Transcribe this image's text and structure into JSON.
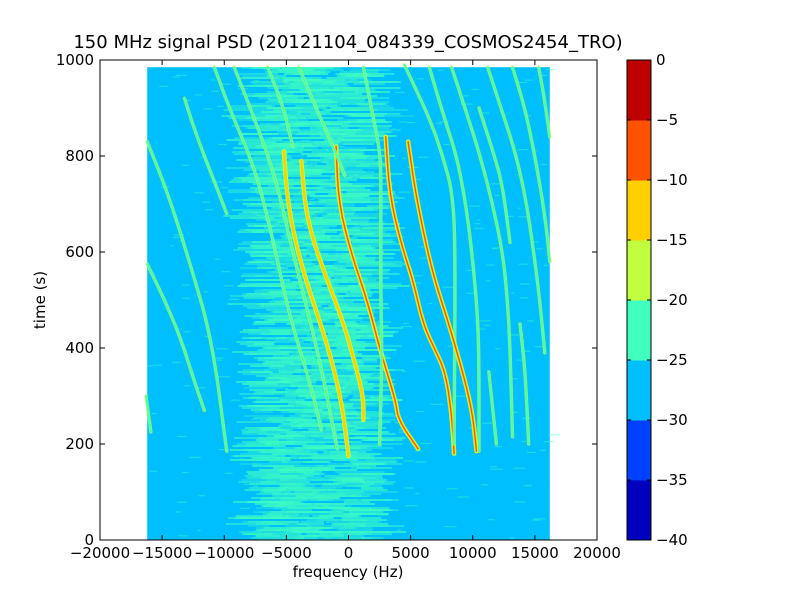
{
  "chart_data": {
    "type": "heatmap",
    "title": "150 MHz signal PSD (20121104_084339_COSMOS2454_TRO)",
    "xlabel": "frequency (Hz)",
    "ylabel": "time (s)",
    "xlim": [
      -20000,
      20000
    ],
    "ylim": [
      0,
      1000
    ],
    "x_ticks": [
      -20000,
      -15000,
      -10000,
      -5000,
      0,
      5000,
      10000,
      15000,
      20000
    ],
    "x_tick_labels": [
      "−20000",
      "−15000",
      "−10000",
      "−5000",
      "0",
      "5000",
      "10000",
      "15000",
      "20000"
    ],
    "y_ticks": [
      0,
      200,
      400,
      600,
      800,
      1000
    ],
    "y_tick_labels": [
      "0",
      "200",
      "400",
      "600",
      "800",
      "1000"
    ],
    "data_extent": {
      "x": [
        -16200,
        16200
      ],
      "y": [
        0,
        985
      ]
    },
    "background_level": -27.5,
    "central_band": {
      "x": [
        -7500,
        2500
      ],
      "level": -24
    },
    "colorbar": {
      "levels": [
        -40,
        -35,
        -30,
        -25,
        -20,
        -15,
        -10,
        -5,
        0
      ],
      "tick_labels": [
        "−40",
        "−35",
        "−30",
        "−25",
        "−20",
        "−15",
        "−10",
        "−5",
        "0"
      ],
      "colors": [
        "#0000bf",
        "#0040ff",
        "#00bfff",
        "#40ffbf",
        "#bfff40",
        "#ffcf00",
        "#ff5200",
        "#bf0000"
      ]
    },
    "traces": [
      {
        "points": [
          [
            -16200,
            830
          ],
          [
            -14500,
            720
          ],
          [
            -12800,
            580
          ],
          [
            -11000,
            420
          ],
          [
            -9800,
            185
          ]
        ],
        "level": -22
      },
      {
        "points": [
          [
            -16200,
            575
          ],
          [
            -14800,
            500
          ],
          [
            -13500,
            420
          ],
          [
            -12400,
            330
          ],
          [
            -11600,
            270
          ]
        ],
        "level": -22
      },
      {
        "points": [
          [
            -13200,
            920
          ],
          [
            -12200,
            840
          ],
          [
            -11000,
            760
          ],
          [
            -9800,
            680
          ]
        ],
        "level": -22
      },
      {
        "points": [
          [
            -16300,
            300
          ],
          [
            -15900,
            225
          ]
        ],
        "level": -22
      },
      {
        "points": [
          [
            -10800,
            985
          ],
          [
            -9600,
            900
          ],
          [
            -7600,
            780
          ],
          [
            -6200,
            640
          ],
          [
            -4800,
            470
          ],
          [
            -3000,
            320
          ],
          [
            -2200,
            230
          ]
        ],
        "level": -21
      },
      {
        "points": [
          [
            -9200,
            985
          ],
          [
            -7600,
            880
          ],
          [
            -5800,
            750
          ],
          [
            -4400,
            590
          ],
          [
            -3000,
            450
          ],
          [
            -1800,
            310
          ],
          [
            -900,
            190
          ]
        ],
        "level": -21
      },
      {
        "points": [
          [
            -5200,
            810
          ],
          [
            -4900,
            700
          ],
          [
            -3900,
            580
          ],
          [
            -2500,
            470
          ],
          [
            -1400,
            380
          ],
          [
            -500,
            280
          ],
          [
            0,
            175
          ]
        ],
        "level": -12
      },
      {
        "points": [
          [
            -3800,
            790
          ],
          [
            -3400,
            670
          ],
          [
            -2000,
            560
          ],
          [
            -500,
            460
          ],
          [
            400,
            380
          ],
          [
            1200,
            300
          ],
          [
            1200,
            250
          ]
        ],
        "level": -12
      },
      {
        "points": [
          [
            -1000,
            820
          ],
          [
            -800,
            700
          ],
          [
            300,
            590
          ],
          [
            1500,
            500
          ],
          [
            2600,
            390
          ],
          [
            3800,
            290
          ],
          [
            4000,
            250
          ],
          [
            5600,
            190
          ]
        ],
        "level": -8
      },
      {
        "points": [
          [
            -4000,
            985
          ],
          [
            -2600,
            900
          ],
          [
            -1400,
            830
          ],
          [
            -300,
            760
          ]
        ],
        "level": -21
      },
      {
        "points": [
          [
            -6500,
            985
          ],
          [
            -5200,
            900
          ],
          [
            -4500,
            820
          ]
        ],
        "level": -22
      },
      {
        "points": [
          [
            1200,
            985
          ],
          [
            2000,
            880
          ],
          [
            2600,
            800
          ],
          [
            2600,
            700
          ],
          [
            2600,
            500
          ],
          [
            2700,
            380
          ],
          [
            2500,
            200
          ]
        ],
        "level": -21
      },
      {
        "points": [
          [
            3000,
            840
          ],
          [
            3300,
            720
          ],
          [
            4200,
            620
          ],
          [
            5200,
            540
          ],
          [
            6000,
            450
          ],
          [
            6900,
            400
          ],
          [
            7800,
            350
          ],
          [
            8300,
            265
          ],
          [
            8500,
            180
          ]
        ],
        "level": -8
      },
      {
        "points": [
          [
            4500,
            990
          ],
          [
            6500,
            880
          ],
          [
            7600,
            800
          ],
          [
            8400,
            720
          ],
          [
            8600,
            600
          ],
          [
            8500,
            200
          ]
        ],
        "level": -21
      },
      {
        "points": [
          [
            4800,
            830
          ],
          [
            5400,
            720
          ],
          [
            6700,
            560
          ],
          [
            8200,
            440
          ],
          [
            9400,
            330
          ],
          [
            10000,
            260
          ],
          [
            10300,
            185
          ]
        ],
        "level": -10
      },
      {
        "points": [
          [
            6500,
            985
          ],
          [
            7700,
            880
          ],
          [
            8700,
            800
          ],
          [
            9300,
            720
          ],
          [
            9800,
            630
          ],
          [
            10300,
            500
          ],
          [
            10500,
            400
          ],
          [
            10500,
            185
          ]
        ],
        "level": -21
      },
      {
        "points": [
          [
            10500,
            900
          ],
          [
            11500,
            820
          ],
          [
            12200,
            760
          ],
          [
            12600,
            700
          ],
          [
            13000,
            620
          ]
        ],
        "level": -22
      },
      {
        "points": [
          [
            8300,
            985
          ],
          [
            9500,
            890
          ],
          [
            10600,
            800
          ],
          [
            11600,
            700
          ],
          [
            12400,
            600
          ],
          [
            12800,
            500
          ],
          [
            13000,
            400
          ],
          [
            13100,
            310
          ],
          [
            13200,
            215
          ]
        ],
        "level": -22
      },
      {
        "points": [
          [
            11200,
            985
          ],
          [
            12400,
            890
          ],
          [
            13400,
            810
          ],
          [
            14200,
            720
          ],
          [
            14800,
            620
          ],
          [
            15400,
            500
          ],
          [
            15800,
            390
          ]
        ],
        "level": -22
      },
      {
        "points": [
          [
            13200,
            985
          ],
          [
            14200,
            900
          ],
          [
            15000,
            800
          ],
          [
            15800,
            680
          ],
          [
            16200,
            580
          ]
        ],
        "level": -22
      },
      {
        "points": [
          [
            15300,
            985
          ],
          [
            15700,
            930
          ],
          [
            16200,
            840
          ]
        ],
        "level": -22
      },
      {
        "points": [
          [
            13800,
            450
          ],
          [
            14200,
            360
          ],
          [
            14500,
            200
          ]
        ],
        "level": -22
      },
      {
        "points": [
          [
            11300,
            350
          ],
          [
            11500,
            300
          ],
          [
            11900,
            200
          ]
        ],
        "level": -22
      }
    ]
  }
}
